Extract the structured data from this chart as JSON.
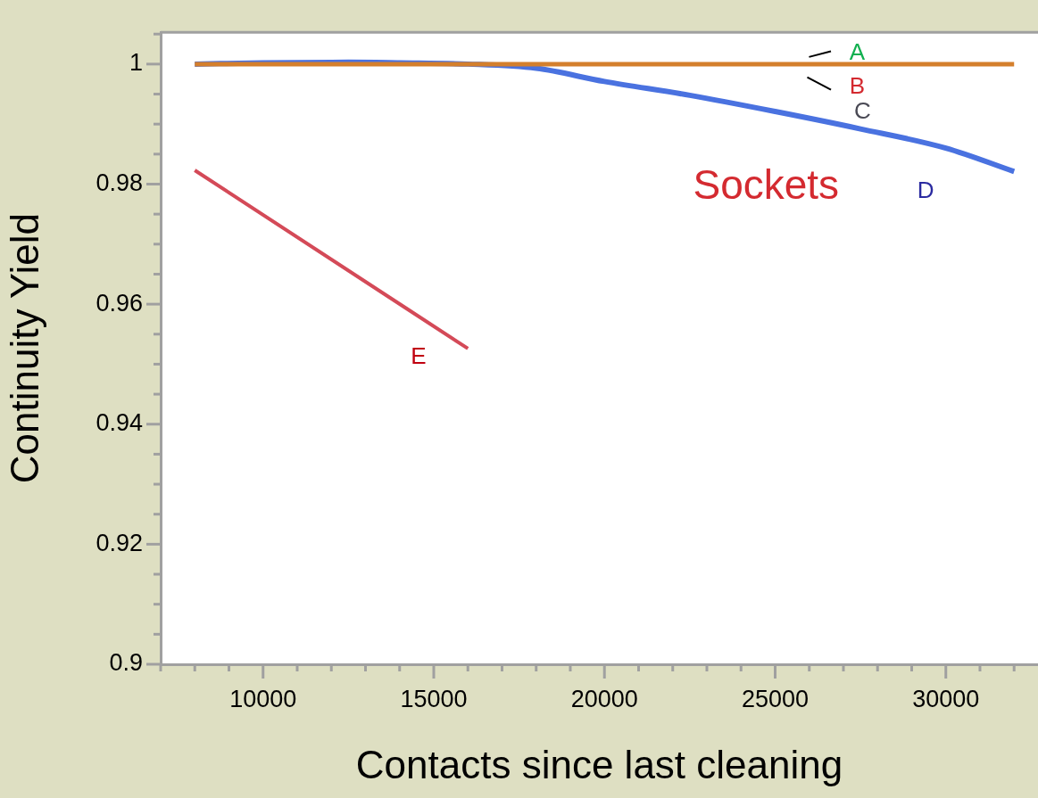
{
  "chart_data": {
    "type": "line",
    "title": "Sockets",
    "xlabel": "Contacts since last cleaning",
    "ylabel": "Continuity Yield",
    "xlim": [
      7000,
      32700
    ],
    "xticks": [
      {
        "value": 7000,
        "label": null
      },
      {
        "value": 8000,
        "label": null
      },
      {
        "value": 9000,
        "label": null
      },
      10000,
      {
        "value": 11000,
        "label": null
      },
      {
        "value": 12000,
        "label": null
      },
      {
        "value": 13000,
        "label": null
      },
      {
        "value": 14000,
        "label": null
      },
      15000,
      {
        "value": 16000,
        "label": null
      },
      {
        "value": 17000,
        "label": null
      },
      {
        "value": 18000,
        "label": null
      },
      {
        "value": 19000,
        "label": null
      },
      20000,
      {
        "value": 21000,
        "label": null
      },
      {
        "value": 22000,
        "label": null
      },
      {
        "value": 23000,
        "label": null
      },
      {
        "value": 24000,
        "label": null
      },
      25000,
      {
        "value": 26000,
        "label": null
      },
      {
        "value": 27000,
        "label": null
      },
      {
        "value": 28000,
        "label": null
      },
      {
        "value": 29000,
        "label": null
      },
      30000,
      {
        "value": 31000,
        "label": null
      },
      {
        "value": 32000,
        "label": null
      }
    ],
    "ylim": [
      0.9,
      1.0053
    ],
    "yticks": [
      0.9,
      {
        "value": 0.905,
        "label": null
      },
      {
        "value": 0.91,
        "label": null
      },
      {
        "value": 0.915,
        "label": null
      },
      0.92,
      {
        "value": 0.925,
        "label": null
      },
      {
        "value": 0.93,
        "label": null
      },
      {
        "value": 0.935,
        "label": null
      },
      0.94,
      {
        "value": 0.945,
        "label": null
      },
      {
        "value": 0.95,
        "label": null
      },
      {
        "value": 0.955,
        "label": null
      },
      0.96,
      {
        "value": 0.965,
        "label": null
      },
      {
        "value": 0.97,
        "label": null
      },
      {
        "value": 0.975,
        "label": null
      },
      0.98,
      {
        "value": 0.985,
        "label": null
      },
      {
        "value": 0.99,
        "label": null
      },
      {
        "value": 0.995,
        "label": null
      },
      1,
      {
        "value": 1.005,
        "label": null
      }
    ],
    "grid": false,
    "legend": false,
    "marker": "none",
    "line_style": "solid",
    "series": [
      {
        "color": "#4a72e0",
        "x": [
          8000,
          10000,
          12500,
          14000,
          16000,
          18000,
          20000,
          22500,
          25000,
          27500,
          30000,
          32000
        ],
        "values": [
          1.0,
          1.0002,
          1.0003,
          1.0002,
          1.0,
          0.9993,
          0.9971,
          0.9948,
          0.9921,
          0.9892,
          0.986,
          0.9821
        ]
      },
      {
        "color": "#d47f2c",
        "x": [
          8000,
          32000
        ],
        "values": [
          1.0,
          1.0
        ]
      },
      {
        "color": "#d44a58",
        "x": [
          8000,
          16000
        ],
        "values": [
          0.9823,
          0.9526
        ]
      }
    ],
    "annotations": [
      "A",
      "B",
      "C",
      "D",
      "E"
    ]
  }
}
